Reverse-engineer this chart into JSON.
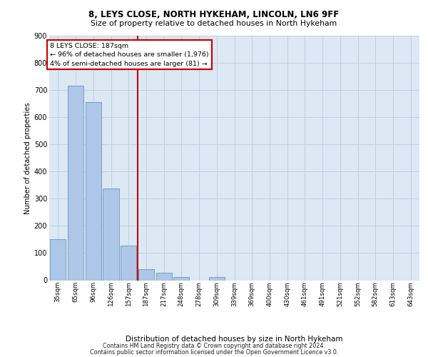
{
  "title1": "8, LEYS CLOSE, NORTH HYKEHAM, LINCOLN, LN6 9FF",
  "title2": "Size of property relative to detached houses in North Hykeham",
  "xlabel": "Distribution of detached houses by size in North Hykeham",
  "ylabel": "Number of detached properties",
  "categories": [
    "35sqm",
    "65sqm",
    "96sqm",
    "126sqm",
    "157sqm",
    "187sqm",
    "217sqm",
    "248sqm",
    "278sqm",
    "309sqm",
    "339sqm",
    "369sqm",
    "400sqm",
    "430sqm",
    "461sqm",
    "491sqm",
    "521sqm",
    "552sqm",
    "582sqm",
    "613sqm",
    "643sqm"
  ],
  "values": [
    150,
    715,
    655,
    337,
    128,
    42,
    28,
    12,
    0,
    12,
    0,
    0,
    0,
    0,
    0,
    0,
    0,
    0,
    0,
    0,
    0
  ],
  "bar_color": "#aec6e8",
  "bar_edge_color": "#6699bb",
  "vline_x": 4.5,
  "vline_color": "#cc0000",
  "annotation_line1": "8 LEYS CLOSE: 187sqm",
  "annotation_line2": "← 96% of detached houses are smaller (1,976)",
  "annotation_line3": "4% of semi-detached houses are larger (81) →",
  "annotation_box_edgecolor": "#cc0000",
  "ylim": [
    0,
    900
  ],
  "yticks": [
    0,
    100,
    200,
    300,
    400,
    500,
    600,
    700,
    800,
    900
  ],
  "grid_color": "#c0d0e0",
  "bg_color": "#dce8f4",
  "footer1": "Contains HM Land Registry data © Crown copyright and database right 2024.",
  "footer2": "Contains public sector information licensed under the Open Government Licence v3.0."
}
